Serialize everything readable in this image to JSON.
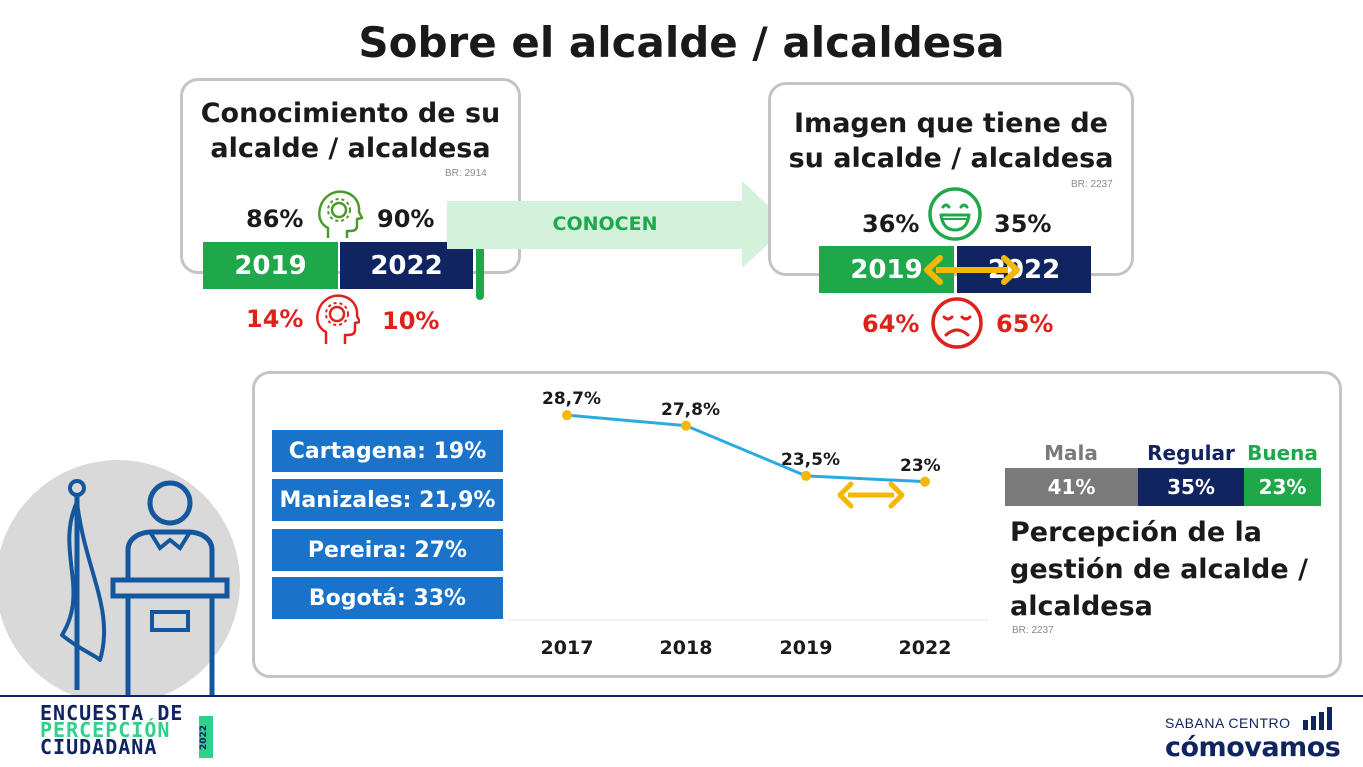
{
  "title": "Sobre el alcalde / alcaldesa",
  "conocimiento": {
    "title_line1": "Conocimiento de su",
    "title_line2": "alcalde / alcaldesa",
    "base": "BR: 2914",
    "knows": {
      "y2019": "86%",
      "y2022": "90%"
    },
    "unknown": {
      "y2019": "14%",
      "y2022": "10%"
    },
    "year_2019": "2019",
    "year_2022": "2022"
  },
  "arrow_label": "CONOCEN",
  "imagen": {
    "title_line1": "Imagen que tiene de",
    "title_line2": "su alcalde / alcaldesa",
    "base": "BR: 2237",
    "positive": {
      "y2019": "36%",
      "y2022": "35%"
    },
    "negative": {
      "y2019": "64%",
      "y2022": "65%"
    },
    "year_2019": "2019",
    "year_2022": "2022"
  },
  "cities": [
    {
      "label": "Cartagena: 19%"
    },
    {
      "label": "Manizales: 21,9%"
    },
    {
      "label": "Pereira: 27%"
    },
    {
      "label": "Bogotá: 33%"
    }
  ],
  "chart_data": {
    "type": "line",
    "x": [
      "2017",
      "2018",
      "2019",
      "2022"
    ],
    "series": [
      {
        "values": [
          28.7,
          27.8,
          23.5,
          23
        ],
        "labels": [
          "28,7%",
          "27,8%",
          "23,5%",
          "23%"
        ]
      }
    ],
    "ylim": [
      18,
      30
    ],
    "grid": false,
    "line_color": "#29abe2",
    "point_color": "#f5b800"
  },
  "gestion": {
    "segments": [
      {
        "name": "Mala",
        "value": "41%",
        "share": 41,
        "color": "#7a7a7a",
        "label_color": "#7a7a7a"
      },
      {
        "name": "Regular",
        "value": "35%",
        "share": 35,
        "color": "#0f2461",
        "label_color": "#0f2461"
      },
      {
        "name": "Buena",
        "value": "23%",
        "share": 23,
        "color": "#1ea84a",
        "label_color": "#1ea84a"
      }
    ],
    "title_line1": "Percepción de la",
    "title_line2": "gestión de alcalde /",
    "title_line3": "alcaldesa",
    "base": "BR: 2237"
  },
  "footer": {
    "logo_line1": "ENCUESTA DE",
    "logo_line2": "PERCEPCIÓN",
    "logo_line3": "CIUDADANA",
    "logo_year": "2022",
    "brand_top": "SABANA CENTRO",
    "brand_bottom": "cómovamos"
  },
  "colors": {
    "green": "#1ea84a",
    "navy": "#0f2461",
    "red": "#e0201b",
    "blue": "#1a73c8",
    "yellow": "#f5b800"
  }
}
